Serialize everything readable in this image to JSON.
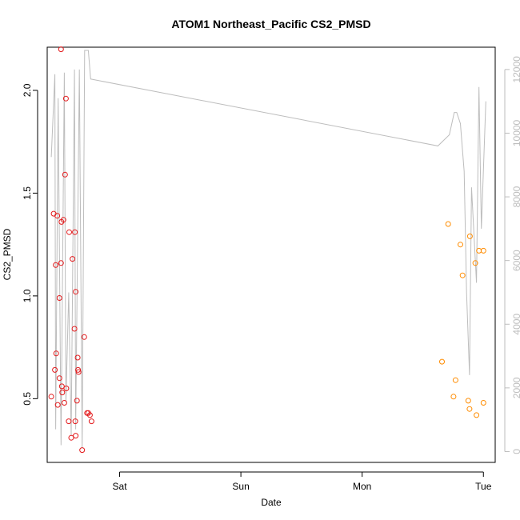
{
  "chart_data": {
    "type": "scatter",
    "title": "ATOM1 Northeast_Pacific CS2_PMSD",
    "xlabel": "Date",
    "ylabel": "CS2_PMSD",
    "x_axis": {
      "type": "date",
      "range": [
        "Fri 09:40",
        "Tue 02:20"
      ],
      "ticks": [
        {
          "label": "Sat",
          "value": "Sat 00:00"
        },
        {
          "label": "Sun",
          "value": "Sun 00:00"
        },
        {
          "label": "Mon",
          "value": "Mon 00:00"
        },
        {
          "label": "Tue",
          "value": "Tue 00:00"
        }
      ]
    },
    "y_axis": {
      "range": [
        0.19,
        2.21
      ],
      "ticks": [
        0.5,
        1.0,
        1.5,
        2.0
      ],
      "tick_labels": [
        "0.5",
        "1.0",
        "1.5",
        "2.0"
      ]
    },
    "y2_axis": {
      "range": [
        -340,
        12700
      ],
      "ticks": [
        0,
        2000,
        4000,
        6000,
        8000,
        10000,
        12000
      ],
      "tick_labels": [
        "0",
        "2000",
        "4000",
        "6000",
        "8000",
        "10000",
        "12000"
      ],
      "color": "#bdbdbd"
    },
    "colors": {
      "series_1": "#e31a1c",
      "series_2": "#ff8c00",
      "depth_line": "#bdbdbd",
      "axis": "#000000"
    },
    "grid": false,
    "series": [
      {
        "color": "#e31a1c",
        "marker": "open-circle",
        "points": [
          {
            "x": "Fri 10:28",
            "y": 0.51
          },
          {
            "x": "Fri 10:57",
            "y": 1.4
          },
          {
            "x": "Fri 11:11",
            "y": 0.64
          },
          {
            "x": "Fri 11:21",
            "y": 1.15
          },
          {
            "x": "Fri 11:26",
            "y": 0.72
          },
          {
            "x": "Fri 11:40",
            "y": 1.39
          },
          {
            "x": "Fri 11:45",
            "y": 0.47
          },
          {
            "x": "Fri 12:05",
            "y": 0.99
          },
          {
            "x": "Fri 12:05",
            "y": 0.6
          },
          {
            "x": "Fri 12:24",
            "y": 2.2
          },
          {
            "x": "Fri 12:24",
            "y": 1.16
          },
          {
            "x": "Fri 12:29",
            "y": 1.36
          },
          {
            "x": "Fri 12:34",
            "y": 0.56
          },
          {
            "x": "Fri 12:39",
            "y": 0.53
          },
          {
            "x": "Fri 12:53",
            "y": 1.37
          },
          {
            "x": "Fri 13:03",
            "y": 0.48
          },
          {
            "x": "Fri 13:12",
            "y": 1.59
          },
          {
            "x": "Fri 13:22",
            "y": 1.96
          },
          {
            "x": "Fri 13:27",
            "y": 0.55
          },
          {
            "x": "Fri 13:56",
            "y": 0.39
          },
          {
            "x": "Fri 14:01",
            "y": 1.31
          },
          {
            "x": "Fri 14:25",
            "y": 0.31
          },
          {
            "x": "Fri 14:40",
            "y": 1.18
          },
          {
            "x": "Fri 15:04",
            "y": 0.84
          },
          {
            "x": "Fri 15:09",
            "y": 1.31
          },
          {
            "x": "Fri 15:13",
            "y": 0.39
          },
          {
            "x": "Fri 15:18",
            "y": 1.02
          },
          {
            "x": "Fri 15:18",
            "y": 0.32
          },
          {
            "x": "Fri 15:33",
            "y": 0.49
          },
          {
            "x": "Fri 15:42",
            "y": 0.7
          },
          {
            "x": "Fri 15:47",
            "y": 0.64
          },
          {
            "x": "Fri 15:52",
            "y": 0.63
          },
          {
            "x": "Fri 16:35",
            "y": 0.25
          },
          {
            "x": "Fri 17:00",
            "y": 0.8
          },
          {
            "x": "Fri 17:33",
            "y": 0.43
          },
          {
            "x": "Fri 17:48",
            "y": 0.43
          },
          {
            "x": "Fri 18:07",
            "y": 0.42
          },
          {
            "x": "Fri 18:26",
            "y": 0.39
          }
        ]
      },
      {
        "color": "#ff8c00",
        "marker": "open-circle",
        "points": [
          {
            "x": "Mon 15:48",
            "y": 0.68
          },
          {
            "x": "Mon 17:01",
            "y": 1.35
          },
          {
            "x": "Mon 18:05",
            "y": 0.51
          },
          {
            "x": "Mon 18:29",
            "y": 0.59
          },
          {
            "x": "Mon 19:27",
            "y": 1.25
          },
          {
            "x": "Mon 19:52",
            "y": 1.1
          },
          {
            "x": "Mon 21:00",
            "y": 0.49
          },
          {
            "x": "Mon 21:15",
            "y": 0.45
          },
          {
            "x": "Mon 21:20",
            "y": 1.29
          },
          {
            "x": "Mon 22:23",
            "y": 1.16
          },
          {
            "x": "Mon 22:38",
            "y": 0.42
          },
          {
            "x": "Mon 23:07",
            "y": 1.22
          },
          {
            "x": "Tue 00:00",
            "y": 0.48
          },
          {
            "x": "Tue 00:00",
            "y": 1.22
          }
        ]
      }
    ],
    "depth_line": {
      "axis": "y2",
      "color": "#bdbdbd",
      "points": [
        {
          "x": "Fri 10:28",
          "y2": 9250
        },
        {
          "x": "Fri 11:11",
          "y2": 11850
        },
        {
          "x": "Fri 11:21",
          "y2": 700
        },
        {
          "x": "Fri 11:50",
          "y2": 11100
        },
        {
          "x": "Fri 12:24",
          "y2": 200
        },
        {
          "x": "Fri 13:03",
          "y2": 11900
        },
        {
          "x": "Fri 13:22",
          "y2": 1550
        },
        {
          "x": "Fri 13:56",
          "y2": 5000
        },
        {
          "x": "Fri 14:25",
          "y2": 500
        },
        {
          "x": "Fri 15:04",
          "y2": 12000
        },
        {
          "x": "Fri 15:18",
          "y2": 700
        },
        {
          "x": "Fri 16:02",
          "y2": 12000
        },
        {
          "x": "Fri 16:35",
          "y2": 100
        },
        {
          "x": "Fri 17:05",
          "y2": 12600
        },
        {
          "x": "Fri 17:48",
          "y2": 12600
        },
        {
          "x": "Fri 18:16",
          "y2": 11700
        },
        {
          "x": "Mon 15:00",
          "y2": 9600
        },
        {
          "x": "Mon 17:16",
          "y2": 9950
        },
        {
          "x": "Mon 18:14",
          "y2": 10650
        },
        {
          "x": "Mon 18:43",
          "y2": 10650
        },
        {
          "x": "Mon 19:27",
          "y2": 10300
        },
        {
          "x": "Mon 20:11",
          "y2": 8800
        },
        {
          "x": "Mon 20:40",
          "y2": 5000
        },
        {
          "x": "Mon 21:15",
          "y2": 2400
        },
        {
          "x": "Mon 21:39",
          "y2": 8300
        },
        {
          "x": "Mon 22:38",
          "y2": 5300
        },
        {
          "x": "Mon 23:07",
          "y2": 11450
        },
        {
          "x": "Mon 23:36",
          "y2": 7000
        },
        {
          "x": "Tue 00:29",
          "y2": 11000
        }
      ]
    }
  }
}
